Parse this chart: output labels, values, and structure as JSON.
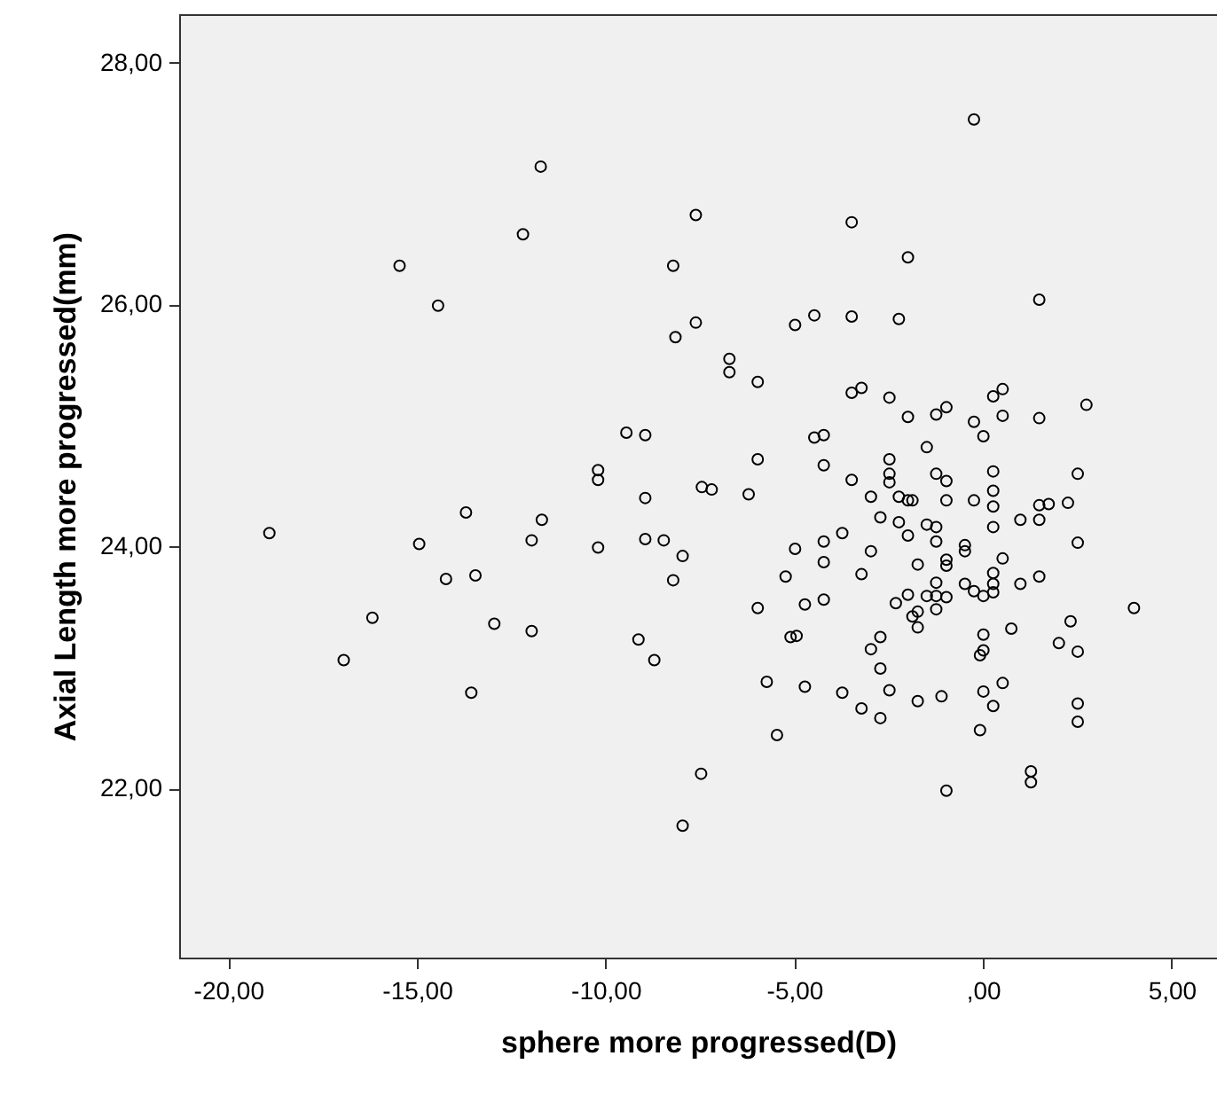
{
  "chart_data": {
    "type": "scatter",
    "xlabel": "sphere more progressed(D)",
    "ylabel": "Axial Length more progressed(mm)",
    "color": "#000000",
    "marker": "circle",
    "grid": false,
    "xlim": [
      -21.3,
      6.2
    ],
    "ylim": [
      20.6,
      28.4
    ],
    "xticks": [
      {
        "value": -20,
        "label": "-20,00"
      },
      {
        "value": -15,
        "label": "-15,00"
      },
      {
        "value": -10,
        "label": "-10,00"
      },
      {
        "value": -5,
        "label": "-5,00"
      },
      {
        "value": 0,
        "label": ",00"
      },
      {
        "value": 5,
        "label": "5,00"
      }
    ],
    "yticks": [
      {
        "value": 22,
        "label": "22,00"
      },
      {
        "value": 24,
        "label": "24,00"
      },
      {
        "value": 26,
        "label": "26,00"
      },
      {
        "value": 28,
        "label": "28,00"
      }
    ],
    "x": [
      -18.91,
      -15.46,
      -14.44,
      -14.94,
      -13.7,
      -14.23,
      -13.45,
      -11.69,
      -11.96,
      -16.18,
      -16.94,
      -12.95,
      -11.96,
      -13.56,
      -11.72,
      -12.19,
      -7.61,
      -8.21,
      -7.61,
      -8.15,
      -4.98,
      -4.47,
      -6.72,
      -6.72,
      -5.97,
      -9.45,
      -8.95,
      -10.2,
      -10.2,
      -8.95,
      -7.45,
      -7.19,
      -6.21,
      -5.97,
      -4.47,
      -4.22,
      -4.22,
      -10.2,
      -8.95,
      -8.46,
      -4.98,
      -4.22,
      -3.73,
      -7.96,
      -8.21,
      -4.22,
      -5.23,
      -5.97,
      -4.72,
      -4.22,
      -5.1,
      -4.94,
      -9.13,
      -8.71,
      -5.73,
      -4.72,
      -3.73,
      -5.46,
      -7.47,
      -7.96,
      -0.24,
      -3.48,
      -1.99,
      1.49,
      -3.48,
      -2.23,
      -3.48,
      -3.22,
      -2.48,
      -1.99,
      -1.24,
      -0.97,
      -0.24,
      0.01,
      0.27,
      0.52,
      0.52,
      1.49,
      2.74,
      -1.49,
      -2.48,
      -2.48,
      -2.48,
      -3.48,
      -2.97,
      -2.23,
      -1.99,
      -1.87,
      -1.24,
      -0.97,
      -0.97,
      -0.24,
      0.27,
      0.27,
      0.27,
      1.49,
      1.74,
      2.25,
      2.51,
      -2.72,
      -2.23,
      -1.49,
      -1.24,
      0.99,
      1.49,
      0.27,
      -1.99,
      -1.24,
      -0.48,
      -0.48,
      2.51,
      -2.97,
      -3.22,
      -1.73,
      -0.97,
      -0.97,
      0.52,
      0.27,
      0.27,
      0.27,
      -1.24,
      -0.48,
      -0.24,
      0.01,
      -1.99,
      -1.49,
      -1.24,
      -0.97,
      -1.24,
      -2.31,
      -1.87,
      -1.73,
      -1.73,
      0.99,
      1.49,
      4.0,
      2.32,
      0.75,
      0.01,
      0.01,
      -0.08,
      2.01,
      2.51,
      -2.72,
      -2.97,
      -2.72,
      -3.22,
      -2.48,
      -2.72,
      -1.73,
      -1.1,
      0.01,
      0.52,
      0.27,
      -0.08,
      2.51,
      2.51,
      1.27,
      1.27,
      -0.97
    ],
    "values": [
      24.11,
      26.32,
      25.99,
      24.02,
      24.28,
      23.73,
      23.76,
      24.22,
      24.05,
      23.41,
      23.06,
      23.36,
      23.3,
      22.79,
      27.14,
      26.58,
      26.74,
      26.32,
      25.85,
      25.73,
      25.83,
      25.91,
      25.55,
      25.44,
      25.36,
      24.94,
      24.92,
      24.63,
      24.55,
      24.4,
      24.49,
      24.47,
      24.43,
      24.72,
      24.9,
      24.92,
      24.67,
      23.99,
      24.06,
      24.05,
      23.98,
      24.04,
      24.11,
      23.92,
      23.72,
      23.87,
      23.75,
      23.49,
      23.52,
      23.56,
      23.25,
      23.26,
      23.23,
      23.06,
      22.88,
      22.84,
      22.79,
      22.44,
      22.12,
      21.69,
      27.53,
      26.68,
      26.39,
      26.04,
      25.9,
      25.88,
      25.27,
      25.31,
      25.23,
      25.07,
      25.09,
      25.15,
      25.03,
      24.91,
      25.24,
      25.3,
      25.08,
      25.06,
      25.17,
      24.82,
      24.72,
      24.6,
      24.53,
      24.55,
      24.41,
      24.41,
      24.38,
      24.38,
      24.6,
      24.54,
      24.38,
      24.38,
      24.62,
      24.46,
      24.33,
      24.34,
      24.35,
      24.36,
      24.6,
      24.24,
      24.2,
      24.18,
      24.16,
      24.22,
      24.22,
      24.16,
      24.09,
      24.04,
      24.01,
      23.96,
      24.03,
      23.96,
      23.77,
      23.85,
      23.89,
      23.84,
      23.9,
      23.78,
      23.69,
      23.62,
      23.7,
      23.69,
      23.63,
      23.59,
      23.6,
      23.59,
      23.59,
      23.58,
      23.48,
      23.53,
      23.42,
      23.46,
      23.33,
      23.69,
      23.75,
      23.49,
      23.38,
      23.32,
      23.27,
      23.14,
      23.1,
      23.2,
      23.13,
      23.25,
      23.15,
      22.99,
      22.66,
      22.81,
      22.58,
      22.72,
      22.76,
      22.8,
      22.87,
      22.68,
      22.48,
      22.7,
      22.55,
      22.14,
      22.05,
      21.98
    ]
  }
}
